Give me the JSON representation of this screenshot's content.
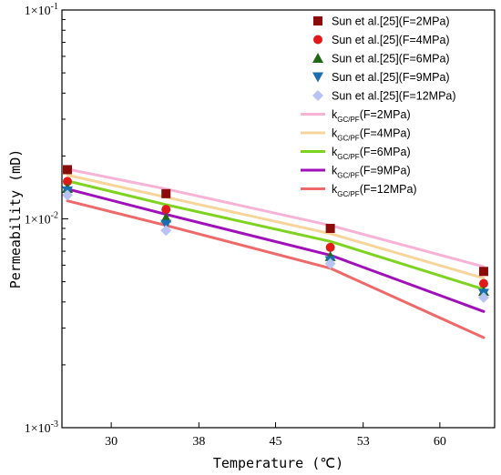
{
  "chart_data": {
    "type": "scatter",
    "xlabel": "Temperature (℃)",
    "ylabel": "Permeability (mD)",
    "xscale": "linear",
    "yscale": "log",
    "xlim": [
      25.5,
      65
    ],
    "ylim": [
      0.001,
      0.1
    ],
    "xticks": [
      30,
      38,
      45,
      53,
      60
    ],
    "yticks": [
      {
        "value": 0.001,
        "label": "1×10",
        "exp": "-3"
      },
      {
        "value": 0.01,
        "label": "1×10",
        "exp": "-2"
      },
      {
        "value": 0.1,
        "label": "1×10",
        "exp": "-1"
      }
    ],
    "legend_position": "top-right",
    "series": [
      {
        "name": "Sun et al.[25](F=2MPa)",
        "kind": "points",
        "marker": "square",
        "color": "#8b0a0a",
        "x": [
          26,
          35,
          50,
          64
        ],
        "y": [
          0.0172,
          0.0132,
          0.009,
          0.0056
        ]
      },
      {
        "name": "Sun et al.[25](F=4MPa)",
        "kind": "points",
        "marker": "circle",
        "color": "#e0191b",
        "x": [
          26,
          35,
          50,
          64
        ],
        "y": [
          0.0151,
          0.0111,
          0.0073,
          0.0049
        ]
      },
      {
        "name": "Sun et al.[25](F=6MPa)",
        "kind": "points",
        "marker": "triangle-up",
        "color": "#1f6a12",
        "x": [
          26,
          35,
          50,
          64
        ],
        "y": [
          0.014,
          0.0101,
          0.0066,
          0.0045
        ]
      },
      {
        "name": "Sun et al.[25](F=9MPa)",
        "kind": "points",
        "marker": "triangle-down",
        "color": "#1a6fb0",
        "x": [
          26,
          35,
          50,
          64
        ],
        "y": [
          0.0136,
          0.0094,
          0.0063,
          0.0044
        ]
      },
      {
        "name": "Sun et al.[25](F=12MPa)",
        "kind": "points",
        "marker": "diamond",
        "color": "#b7c3f3",
        "x": [
          26,
          35,
          50,
          64
        ],
        "y": [
          0.013,
          0.0088,
          0.0061,
          0.0042
        ]
      },
      {
        "name": "k",
        "sub": "GC/PF",
        "suffix": "(F=2MPa)",
        "kind": "line",
        "color": "#f7b3d6",
        "x": [
          26,
          35,
          50,
          64
        ],
        "y": [
          0.0173,
          0.0139,
          0.0093,
          0.0059
        ]
      },
      {
        "name": "k",
        "sub": "GC/PF",
        "suffix": "(F=4MPa)",
        "kind": "line",
        "color": "#f7d59a",
        "x": [
          26,
          35,
          50,
          64
        ],
        "y": [
          0.0162,
          0.0127,
          0.0085,
          0.0052
        ]
      },
      {
        "name": "k",
        "sub": "GC/PF",
        "suffix": "(F=6MPa)",
        "kind": "line",
        "color": "#7ed321",
        "x": [
          26,
          35,
          50,
          64
        ],
        "y": [
          0.0152,
          0.0117,
          0.0078,
          0.0046
        ]
      },
      {
        "name": "k",
        "sub": "GC/PF",
        "suffix": "(F=9MPa)",
        "kind": "line",
        "color": "#a010b8",
        "x": [
          26,
          35,
          50,
          64
        ],
        "y": [
          0.0139,
          0.0105,
          0.0067,
          0.0036
        ]
      },
      {
        "name": "k",
        "sub": "GC/PF",
        "suffix": "(F=12MPa)",
        "kind": "line",
        "color": "#ee6a6a",
        "x": [
          26,
          35,
          50,
          64
        ],
        "y": [
          0.0122,
          0.0093,
          0.0058,
          0.0027
        ]
      }
    ]
  }
}
